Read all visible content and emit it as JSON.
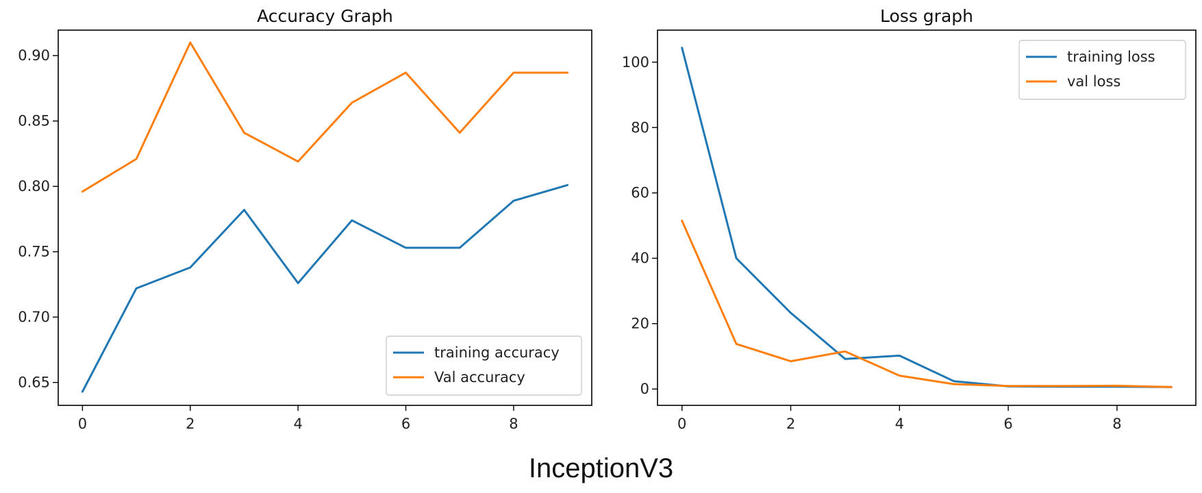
{
  "caption": "InceptionV3",
  "colors": {
    "blue": "#1f77b4",
    "orange": "#ff7f0e",
    "axis": "#000000",
    "text": "#222222"
  },
  "chart_data": [
    {
      "type": "line",
      "title": "Accuracy Graph",
      "xlabel": "",
      "ylabel": "",
      "x": [
        0,
        1,
        2,
        3,
        4,
        5,
        6,
        7,
        8,
        9
      ],
      "xlim": [
        -0.45,
        9.45
      ],
      "ylim": [
        0.6325,
        0.9195
      ],
      "xticks": [
        0,
        2,
        4,
        6,
        8
      ],
      "xtick_labels": [
        "0",
        "2",
        "4",
        "6",
        "8"
      ],
      "yticks": [
        0.65,
        0.7,
        0.75,
        0.8,
        0.85,
        0.9
      ],
      "ytick_labels": [
        "0.65",
        "0.70",
        "0.75",
        "0.80",
        "0.85",
        "0.90"
      ],
      "legend_position": "lower-right",
      "grid": false,
      "series": [
        {
          "name": "training accuracy",
          "color": "#1f77b4",
          "values": [
            0.643,
            0.722,
            0.738,
            0.782,
            0.726,
            0.774,
            0.753,
            0.753,
            0.789,
            0.801
          ]
        },
        {
          "name": "Val accuracy",
          "color": "#ff7f0e",
          "values": [
            0.796,
            0.821,
            0.91,
            0.841,
            0.819,
            0.864,
            0.887,
            0.841,
            0.887,
            0.887
          ]
        }
      ]
    },
    {
      "type": "line",
      "title": "Loss graph",
      "xlabel": "",
      "ylabel": "",
      "x": [
        0,
        1,
        2,
        3,
        4,
        5,
        6,
        7,
        8,
        9
      ],
      "xlim": [
        -0.45,
        9.45
      ],
      "ylim": [
        -5.0,
        109.8
      ],
      "xticks": [
        0,
        2,
        4,
        6,
        8
      ],
      "xtick_labels": [
        "0",
        "2",
        "4",
        "6",
        "8"
      ],
      "yticks": [
        0,
        20,
        40,
        60,
        80,
        100
      ],
      "ytick_labels": [
        "0",
        "20",
        "40",
        "60",
        "80",
        "100"
      ],
      "legend_position": "upper-right",
      "grid": false,
      "series": [
        {
          "name": "training loss",
          "color": "#1f77b4",
          "values": [
            104.4,
            40.0,
            23.3,
            9.2,
            10.2,
            2.4,
            0.8,
            0.7,
            0.7,
            0.6
          ]
        },
        {
          "name": "val loss",
          "color": "#ff7f0e",
          "values": [
            51.5,
            13.8,
            8.5,
            11.5,
            4.1,
            1.5,
            0.9,
            0.9,
            1.0,
            0.6
          ]
        }
      ]
    }
  ]
}
